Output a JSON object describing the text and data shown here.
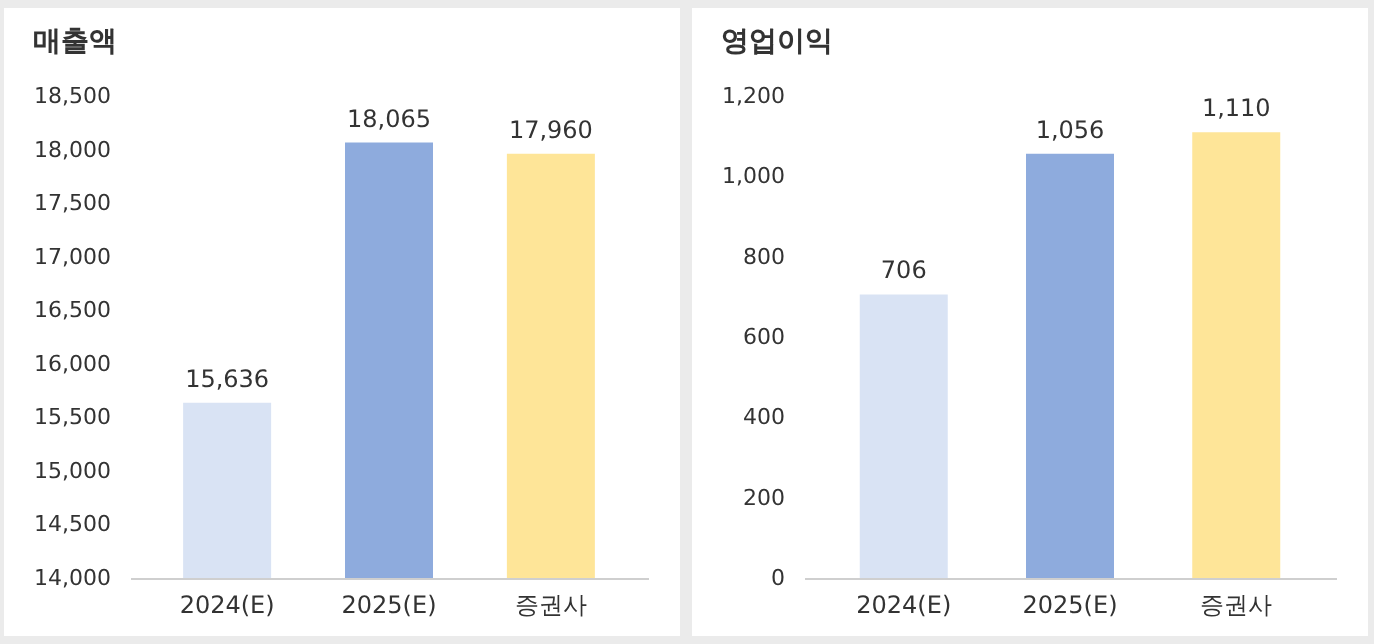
{
  "chart_data": [
    {
      "type": "bar",
      "title": "매출액",
      "categories": [
        "2024(E)",
        "2025(E)",
        "증권사"
      ],
      "values": [
        15636,
        18065,
        17960
      ],
      "value_labels": [
        "15,636",
        "18,065",
        "17,960"
      ],
      "colors": [
        "#d9e3f4",
        "#8eabdd",
        "#fee598"
      ],
      "ylim": [
        14000,
        18500
      ],
      "yticks": [
        {
          "value": 14000,
          "label": "14,000"
        },
        {
          "value": 14500,
          "label": "14,500"
        },
        {
          "value": 15000,
          "label": "15,000"
        },
        {
          "value": 15500,
          "label": "15,500"
        },
        {
          "value": 16000,
          "label": "16,000"
        },
        {
          "value": 16500,
          "label": "16,500"
        },
        {
          "value": 17000,
          "label": "17,000"
        },
        {
          "value": 17500,
          "label": "17,500"
        },
        {
          "value": 18000,
          "label": "18,000"
        },
        {
          "value": 18500,
          "label": "18,500"
        }
      ]
    },
    {
      "type": "bar",
      "title": "영업이익",
      "categories": [
        "2024(E)",
        "2025(E)",
        "증권사"
      ],
      "values": [
        706,
        1056,
        1110
      ],
      "value_labels": [
        "706",
        "1,056",
        "1,110"
      ],
      "colors": [
        "#d9e3f4",
        "#8eabdd",
        "#fee598"
      ],
      "ylim": [
        0,
        1200
      ],
      "yticks": [
        0,
        200,
        400,
        600,
        800,
        {
          "value": 1000,
          "label": "1,000"
        },
        {
          "value": 1200,
          "label": "1,200"
        }
      ]
    }
  ]
}
